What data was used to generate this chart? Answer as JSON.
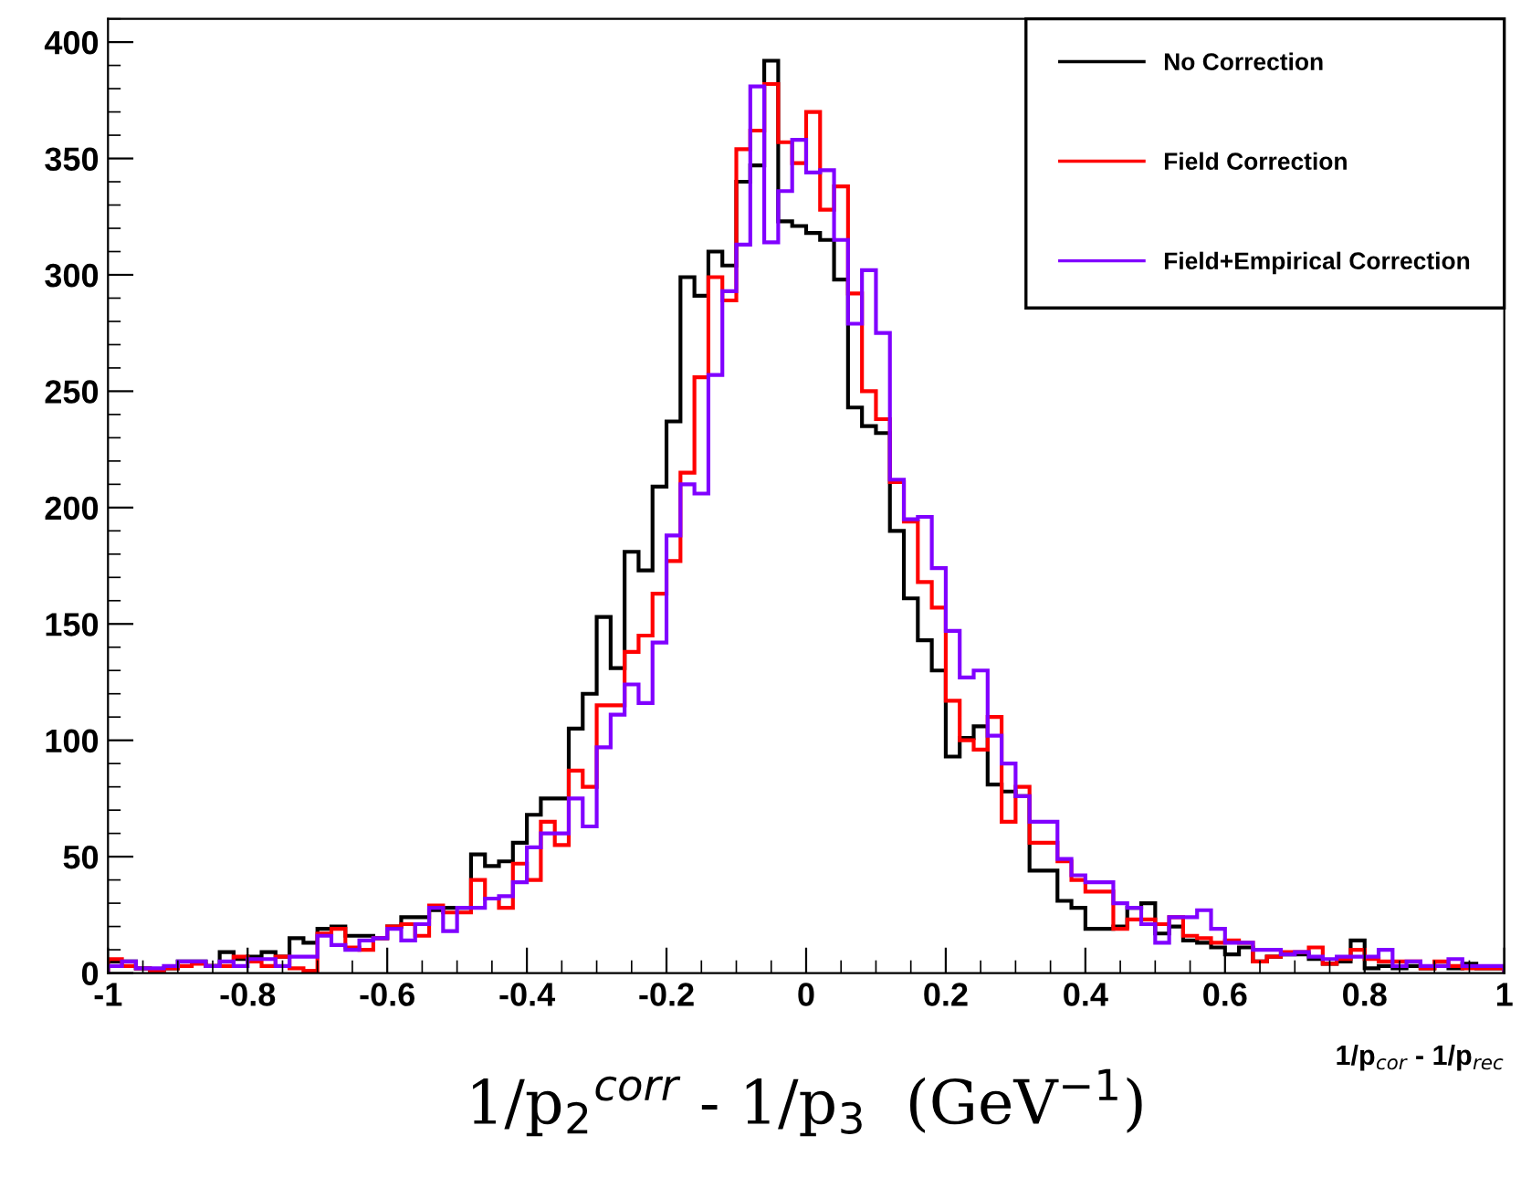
{
  "chart_data": {
    "type": "histogram",
    "xlabel": "1/p$_{cor}$ - 1/p$_{rec}$",
    "annotations": [
      "1/p$_{2}$$^{corr}$ - 1/p$_{3}$  (GeV$^{−1}$)"
    ],
    "bins": [
      -1.0,
      -0.98,
      -0.96,
      -0.94,
      -0.92,
      -0.9,
      -0.88,
      -0.86,
      -0.84,
      -0.82,
      -0.8,
      -0.78,
      -0.76,
      -0.74,
      -0.72,
      -0.7,
      -0.68,
      -0.66,
      -0.64,
      -0.62,
      -0.6,
      -0.58,
      -0.56,
      -0.54,
      -0.52,
      -0.5,
      -0.48,
      -0.46,
      -0.44,
      -0.42,
      -0.4,
      -0.38,
      -0.36,
      -0.34,
      -0.32,
      -0.3,
      -0.28,
      -0.26,
      -0.24,
      -0.22,
      -0.2,
      -0.18,
      -0.16,
      -0.14,
      -0.12,
      -0.1,
      -0.08,
      -0.06,
      -0.04,
      -0.02,
      0.0,
      0.02,
      0.04,
      0.06,
      0.08,
      0.1,
      0.12,
      0.14,
      0.16,
      0.18,
      0.2,
      0.22,
      0.24,
      0.26,
      0.28,
      0.3,
      0.32,
      0.34,
      0.36,
      0.38,
      0.4,
      0.42,
      0.44,
      0.46,
      0.48,
      0.5,
      0.52,
      0.54,
      0.56,
      0.58,
      0.6,
      0.62,
      0.64,
      0.66,
      0.68,
      0.7,
      0.72,
      0.74,
      0.76,
      0.78,
      0.8,
      0.82,
      0.84,
      0.86,
      0.88,
      0.9,
      0.92,
      0.94,
      0.96,
      0.98,
      1.0
    ],
    "series": [
      {
        "name": "No Correction",
        "color": "#000000",
        "values": [
          5,
          5,
          2,
          1,
          2,
          5,
          5,
          3,
          9,
          6,
          7,
          9,
          7,
          15,
          13,
          19,
          20,
          16,
          16,
          15,
          20,
          24,
          24,
          27,
          28,
          28,
          51,
          46,
          48,
          56,
          68,
          75,
          75,
          105,
          120,
          153,
          131,
          181,
          173,
          209,
          237,
          299,
          291,
          310,
          304,
          340,
          347,
          392,
          323,
          321,
          318,
          315,
          298,
          243,
          235,
          232,
          190,
          161,
          143,
          130,
          93,
          101,
          106,
          81,
          78,
          76,
          44,
          44,
          31,
          28,
          19,
          19,
          20,
          28,
          30,
          17,
          20,
          14,
          13,
          11,
          8,
          11,
          5,
          7,
          8,
          8,
          6,
          4,
          5,
          14,
          2,
          3,
          2,
          3,
          2,
          3,
          2,
          4,
          2,
          2
        ]
      },
      {
        "name": "Field Correction",
        "color": "#ff0000",
        "values": [
          6,
          3,
          2,
          1,
          2,
          3,
          4,
          3,
          3,
          7,
          5,
          3,
          7,
          2,
          1,
          17,
          19,
          11,
          10,
          15,
          20,
          21,
          16,
          29,
          26,
          26,
          40,
          32,
          28,
          47,
          40,
          65,
          55,
          87,
          80,
          115,
          115,
          138,
          145,
          163,
          177,
          215,
          256,
          299,
          289,
          354,
          362,
          382,
          357,
          348,
          370,
          328,
          338,
          292,
          250,
          238,
          211,
          194,
          168,
          157,
          117,
          100,
          96,
          110,
          65,
          80,
          56,
          56,
          48,
          40,
          35,
          35,
          19,
          23,
          23,
          21,
          24,
          16,
          15,
          13,
          14,
          13,
          5,
          7,
          9,
          9,
          11,
          4,
          6,
          10,
          6,
          5,
          5,
          5,
          2,
          5,
          3,
          2,
          2,
          2
        ]
      },
      {
        "name": "Field+Empirical Correction",
        "color": "#8000ff",
        "values": [
          3,
          5,
          2,
          2,
          3,
          5,
          5,
          3,
          5,
          3,
          6,
          6,
          3,
          7,
          7,
          16,
          12,
          10,
          14,
          15,
          19,
          14,
          21,
          28,
          18,
          28,
          28,
          32,
          33,
          39,
          54,
          60,
          60,
          75,
          63,
          97,
          111,
          124,
          116,
          142,
          188,
          210,
          206,
          257,
          293,
          313,
          381,
          314,
          336,
          358,
          344,
          345,
          315,
          279,
          302,
          275,
          212,
          195,
          196,
          174,
          147,
          127,
          130,
          102,
          90,
          76,
          65,
          65,
          49,
          42,
          39,
          39,
          30,
          28,
          21,
          13,
          24,
          24,
          27,
          19,
          13,
          13,
          10,
          10,
          8,
          9,
          7,
          6,
          7,
          7,
          7,
          10,
          3,
          5,
          3,
          3,
          6,
          3,
          3,
          3
        ]
      }
    ],
    "xlim": [
      -1,
      1
    ],
    "ylim": [
      0,
      410
    ],
    "xticks": [
      -1,
      -0.8,
      -0.6,
      -0.4,
      -0.2,
      0,
      0.2,
      0.4,
      0.6,
      0.8,
      1
    ],
    "yticks": [
      0,
      50,
      100,
      150,
      200,
      250,
      300,
      350,
      400
    ],
    "legend": "top right",
    "grid": false
  }
}
